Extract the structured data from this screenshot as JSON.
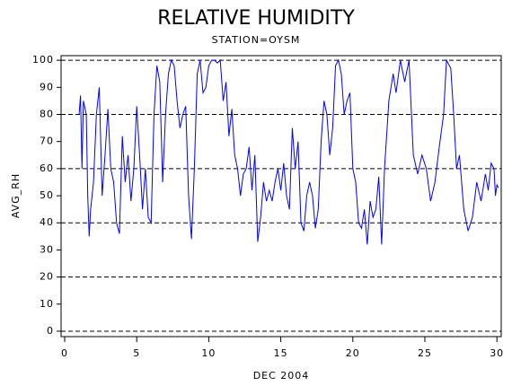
{
  "chart_data": {
    "type": "line",
    "title": "RELATIVE HUMIDITY",
    "subtitle": "STATION=OYSM",
    "ylabel": "AVG_RH",
    "xlabel": "DEC 2004",
    "xlim": [
      -0.25,
      30.3
    ],
    "xticks": [
      0,
      5,
      10,
      15,
      20,
      25,
      30
    ],
    "ylim": [
      -2,
      101.7
    ],
    "yticks": [
      0,
      10,
      20,
      30,
      40,
      50,
      60,
      70,
      80,
      90,
      100
    ],
    "grid_lines": [
      0,
      20,
      40,
      60,
      80,
      100
    ],
    "series": [
      {
        "name": "AVG_RH",
        "color": "#0000ff",
        "x": [
          1.0,
          1.1,
          1.2,
          1.3,
          1.5,
          1.6,
          1.7,
          1.8,
          2.0,
          2.2,
          2.4,
          2.6,
          2.8,
          3.0,
          3.2,
          3.4,
          3.6,
          3.8,
          4.0,
          4.2,
          4.4,
          4.6,
          4.8,
          5.0,
          5.2,
          5.4,
          5.6,
          5.8,
          6.0,
          6.2,
          6.4,
          6.6,
          6.8,
          7.0,
          7.2,
          7.4,
          7.6,
          7.8,
          8.0,
          8.2,
          8.4,
          8.6,
          8.8,
          9.0,
          9.2,
          9.4,
          9.6,
          9.8,
          10.0,
          10.2,
          10.4,
          10.6,
          10.8,
          11.0,
          11.2,
          11.4,
          11.6,
          11.8,
          12.0,
          12.2,
          12.4,
          12.6,
          12.8,
          13.0,
          13.2,
          13.4,
          13.6,
          13.8,
          14.0,
          14.2,
          14.4,
          14.6,
          14.8,
          15.0,
          15.2,
          15.4,
          15.6,
          15.8,
          16.0,
          16.2,
          16.4,
          16.6,
          16.8,
          17.0,
          17.2,
          17.4,
          17.6,
          17.8,
          18.0,
          18.2,
          18.4,
          18.6,
          18.8,
          19.0,
          19.2,
          19.4,
          19.6,
          19.8,
          20.0,
          20.2,
          20.4,
          20.6,
          20.8,
          21.0,
          21.2,
          21.4,
          21.6,
          21.8,
          22.0,
          22.2,
          22.5,
          22.8,
          23.0,
          23.3,
          23.6,
          23.9,
          24.2,
          24.5,
          24.8,
          25.1,
          25.4,
          25.7,
          26.0,
          26.3,
          26.5,
          26.8,
          27.0,
          27.2,
          27.4,
          27.7,
          28.0,
          28.3,
          28.6,
          28.9,
          29.2,
          29.4,
          29.6,
          29.8,
          29.9,
          30.0,
          30.1
        ],
        "values": [
          80,
          87,
          60,
          85,
          80,
          50,
          35,
          45,
          55,
          80,
          90,
          50,
          65,
          82,
          60,
          55,
          40,
          36,
          72,
          55,
          65,
          48,
          60,
          83,
          65,
          45,
          60,
          42,
          40,
          80,
          98,
          92,
          55,
          80,
          95,
          100,
          98,
          85,
          75,
          80,
          83,
          50,
          34,
          60,
          95,
          100,
          88,
          90,
          98,
          100,
          100,
          99,
          100,
          85,
          92,
          72,
          82,
          65,
          60,
          50,
          58,
          60,
          68,
          52,
          65,
          33,
          42,
          55,
          48,
          52,
          48,
          55,
          60,
          52,
          62,
          50,
          45,
          75,
          60,
          70,
          40,
          37,
          50,
          55,
          50,
          38,
          45,
          70,
          85,
          80,
          65,
          75,
          98,
          100,
          95,
          80,
          85,
          88,
          60,
          55,
          40,
          38,
          45,
          32,
          48,
          42,
          45,
          57,
          32,
          60,
          85,
          95,
          88,
          100,
          92,
          100,
          65,
          58,
          65,
          60,
          48,
          55,
          68,
          80,
          100,
          97,
          80,
          60,
          65,
          45,
          37,
          42,
          55,
          48,
          58,
          52,
          62,
          60,
          50,
          54,
          53
        ]
      }
    ]
  }
}
